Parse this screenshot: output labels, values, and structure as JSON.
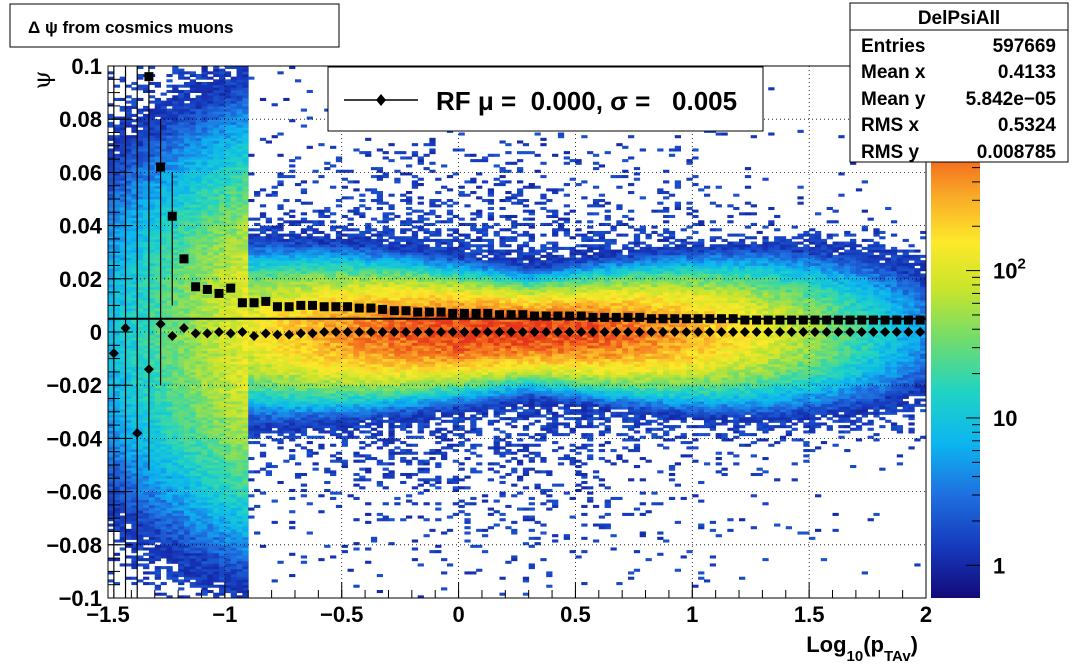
{
  "chart_data": {
    "type": "heatmap",
    "title": "Δ ψ from cosmics muons",
    "xlabel": {
      "base": "Log",
      "sub1": "10",
      "open": "(p",
      "sub2": "TAv",
      "close": ")"
    },
    "ylabel": "ψ",
    "xlim": [
      -1.5,
      2.0
    ],
    "ylim": [
      -0.1,
      0.1
    ],
    "x_ticks": [
      -1.5,
      -1.0,
      -0.5,
      0.0,
      0.5,
      1.0,
      1.5,
      2.0
    ],
    "x_tick_labels": [
      "−1.5",
      "−1",
      "−0.5",
      "0",
      "0.5",
      "1",
      "1.5",
      "2"
    ],
    "y_ticks": [
      -0.1,
      -0.08,
      -0.06,
      -0.04,
      -0.02,
      0.0,
      0.02,
      0.04,
      0.06,
      0.08,
      0.1
    ],
    "y_tick_labels": [
      "−0.1",
      "−0.08",
      "−0.06",
      "−0.04",
      "−0.02",
      "0",
      "0.02",
      "0.04",
      "0.06",
      "0.08",
      "0.1"
    ],
    "grid": true,
    "colorbar": {
      "scale": "log",
      "range": [
        0.6,
        900
      ],
      "ticks": [
        1,
        10,
        100
      ],
      "tick_labels": [
        {
          "base": "1",
          "exp": ""
        },
        {
          "base": "10",
          "exp": ""
        },
        {
          "base": "10",
          "exp": "2"
        }
      ]
    },
    "stats_box": {
      "title": "DelPsiAll",
      "rows": [
        {
          "label": "Entries",
          "value": "597669"
        },
        {
          "label": "Mean x",
          "value": "0.4133"
        },
        {
          "label": "Mean y",
          "value": "5.842e−05"
        },
        {
          "label": "RMS x",
          "value": "0.5324"
        },
        {
          "label": "RMS y",
          "value": "0.008785"
        }
      ]
    },
    "legend": {
      "placement": "top-center",
      "label": "RF μ =  0.000, σ =   0.005"
    },
    "reference_line_y": 0.005,
    "series": [
      {
        "name": "RF μ",
        "marker": "diamond",
        "points": [
          [
            -1.475,
            -0.008
          ],
          [
            -1.425,
            0.0015
          ],
          [
            -1.375,
            -0.038
          ],
          [
            -1.325,
            -0.014
          ],
          [
            -1.275,
            0.003
          ],
          [
            -1.225,
            -0.0015
          ],
          [
            -1.175,
            0.0015
          ],
          [
            -1.125,
            -0.0005
          ],
          [
            -1.075,
            -0.0005
          ],
          [
            -1.025,
            0.0
          ],
          [
            -0.975,
            -0.0005
          ],
          [
            -0.925,
            0.0
          ],
          [
            -0.875,
            -0.0015
          ],
          [
            -0.825,
            -0.0005
          ],
          [
            -0.775,
            -0.001
          ],
          [
            -0.725,
            -0.001
          ],
          [
            -0.675,
            -0.0005
          ],
          [
            -0.625,
            -0.0005
          ],
          [
            -0.575,
            0.0
          ],
          [
            -0.525,
            0.0
          ],
          [
            -0.475,
            0.0
          ],
          [
            -0.425,
            0.0
          ],
          [
            -0.375,
            0.0
          ],
          [
            -0.325,
            0.0
          ],
          [
            -0.275,
            0.0
          ],
          [
            -0.225,
            0.0
          ],
          [
            -0.175,
            0.0
          ],
          [
            -0.125,
            0.0
          ],
          [
            -0.075,
            0.0
          ],
          [
            -0.025,
            0.0
          ],
          [
            0.025,
            0.0
          ],
          [
            0.075,
            0.0
          ],
          [
            0.125,
            0.0
          ],
          [
            0.175,
            0.0
          ],
          [
            0.225,
            0.0
          ],
          [
            0.275,
            0.0
          ],
          [
            0.325,
            0.0
          ],
          [
            0.375,
            0.0
          ],
          [
            0.425,
            0.0
          ],
          [
            0.475,
            0.0
          ],
          [
            0.525,
            0.0
          ],
          [
            0.575,
            0.0
          ],
          [
            0.625,
            0.0
          ],
          [
            0.675,
            0.0
          ],
          [
            0.725,
            0.0
          ],
          [
            0.775,
            0.0
          ],
          [
            0.825,
            0.0
          ],
          [
            0.875,
            0.0
          ],
          [
            0.925,
            0.0
          ],
          [
            0.975,
            0.0
          ],
          [
            1.025,
            0.0
          ],
          [
            1.075,
            0.0
          ],
          [
            1.125,
            0.0
          ],
          [
            1.175,
            0.0
          ],
          [
            1.225,
            0.0
          ],
          [
            1.275,
            0.0
          ],
          [
            1.325,
            0.0
          ],
          [
            1.375,
            0.0
          ],
          [
            1.425,
            0.0
          ],
          [
            1.475,
            0.0
          ],
          [
            1.525,
            0.0
          ],
          [
            1.575,
            0.0
          ],
          [
            1.625,
            0.0
          ],
          [
            1.675,
            0.0
          ],
          [
            1.725,
            0.0
          ],
          [
            1.775,
            0.0
          ],
          [
            1.825,
            0.0
          ],
          [
            1.875,
            0.0
          ],
          [
            1.925,
            0.0
          ],
          [
            1.975,
            0.0
          ]
        ]
      },
      {
        "name": "RF σ",
        "marker": "square",
        "points": [
          [
            -1.325,
            0.096
          ],
          [
            -1.275,
            0.062
          ],
          [
            -1.225,
            0.0435
          ],
          [
            -1.175,
            0.0275
          ],
          [
            -1.125,
            0.017
          ],
          [
            -1.075,
            0.016
          ],
          [
            -1.025,
            0.0145
          ],
          [
            -0.975,
            0.0165
          ],
          [
            -0.925,
            0.011
          ],
          [
            -0.875,
            0.011
          ],
          [
            -0.825,
            0.0115
          ],
          [
            -0.775,
            0.0095
          ],
          [
            -0.725,
            0.0095
          ],
          [
            -0.675,
            0.01
          ],
          [
            -0.625,
            0.01
          ],
          [
            -0.575,
            0.0095
          ],
          [
            -0.525,
            0.0095
          ],
          [
            -0.475,
            0.0095
          ],
          [
            -0.425,
            0.009
          ],
          [
            -0.375,
            0.009
          ],
          [
            -0.325,
            0.0085
          ],
          [
            -0.275,
            0.008
          ],
          [
            -0.225,
            0.008
          ],
          [
            -0.175,
            0.0075
          ],
          [
            -0.125,
            0.0075
          ],
          [
            -0.075,
            0.0075
          ],
          [
            -0.025,
            0.007
          ],
          [
            0.025,
            0.007
          ],
          [
            0.075,
            0.007
          ],
          [
            0.125,
            0.007
          ],
          [
            0.175,
            0.0065
          ],
          [
            0.225,
            0.0065
          ],
          [
            0.275,
            0.0065
          ],
          [
            0.325,
            0.006
          ],
          [
            0.375,
            0.006
          ],
          [
            0.425,
            0.006
          ],
          [
            0.475,
            0.006
          ],
          [
            0.525,
            0.006
          ],
          [
            0.575,
            0.0055
          ],
          [
            0.625,
            0.0055
          ],
          [
            0.675,
            0.0055
          ],
          [
            0.725,
            0.0055
          ],
          [
            0.775,
            0.0055
          ],
          [
            0.825,
            0.005
          ],
          [
            0.875,
            0.005
          ],
          [
            0.925,
            0.005
          ],
          [
            0.975,
            0.005
          ],
          [
            1.025,
            0.005
          ],
          [
            1.075,
            0.005
          ],
          [
            1.125,
            0.005
          ],
          [
            1.175,
            0.005
          ],
          [
            1.225,
            0.0045
          ],
          [
            1.275,
            0.0045
          ],
          [
            1.325,
            0.0045
          ],
          [
            1.375,
            0.0045
          ],
          [
            1.425,
            0.0045
          ],
          [
            1.475,
            0.0045
          ],
          [
            1.525,
            0.0045
          ],
          [
            1.575,
            0.0045
          ],
          [
            1.625,
            0.0045
          ],
          [
            1.675,
            0.0045
          ],
          [
            1.725,
            0.0045
          ],
          [
            1.775,
            0.0045
          ],
          [
            1.825,
            0.0045
          ],
          [
            1.875,
            0.0045
          ],
          [
            1.925,
            0.0045
          ],
          [
            1.975,
            0.0045
          ]
        ]
      }
    ],
    "error_bars": [
      {
        "x": -1.475,
        "low": -0.1,
        "high": 0.1
      },
      {
        "x": -1.425,
        "low": -0.1,
        "high": 0.1
      },
      {
        "x": -1.375,
        "low": -0.1,
        "high": 0.1
      },
      {
        "x": -1.325,
        "low": -0.052,
        "high": 0.1
      },
      {
        "x": -1.275,
        "low": -0.02,
        "high": 0.08
      },
      {
        "x": -1.225,
        "low": 0.01,
        "high": 0.06
      }
    ],
    "density_model": {
      "description": "2D histogram of psi vs log10(pTAv), peaked near x≈0.2, y≈0",
      "peak_count": 900
    }
  }
}
